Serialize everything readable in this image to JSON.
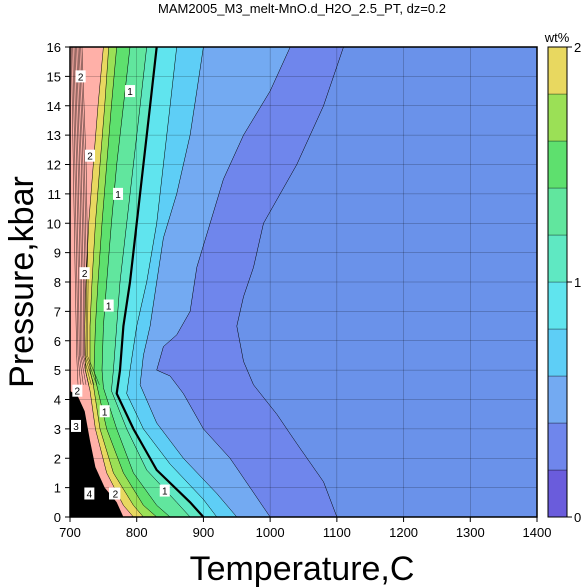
{
  "chart_data": {
    "type": "heatmap",
    "title": "MAM2005_M3_melt-MnO.d_H2O_2.5_PT, dz=0.2",
    "xlabel": "Temperature,C",
    "ylabel": "Pressure,kbar",
    "xlim": [
      700,
      1400
    ],
    "ylim": [
      0,
      16
    ],
    "xticks": [
      700,
      800,
      900,
      1000,
      1100,
      1200,
      1300,
      1400
    ],
    "yticks": [
      0,
      1,
      2,
      3,
      4,
      5,
      6,
      7,
      8,
      9,
      10,
      11,
      12,
      13,
      14,
      15,
      16
    ],
    "grid": true,
    "colorbar": {
      "label": "wt%",
      "range": [
        0,
        2
      ],
      "ticks": [
        0,
        1,
        2
      ],
      "interval": 0.2,
      "colors": [
        "#6a5cdc",
        "#6f86ec",
        "#73aaf2",
        "#5ecef6",
        "#60e4ee",
        "#5fe8c2",
        "#61e69e",
        "#5ee06e",
        "#9be056",
        "#e8d860",
        "#ffb0a8",
        "#f8c2e0",
        "#ffffff"
      ]
    },
    "contour_labels": [
      "2",
      "1",
      "1",
      "2",
      "2",
      "1",
      "2",
      "1",
      "3",
      "4",
      "3",
      "2",
      "1"
    ],
    "bands": [
      {
        "value": 0.3,
        "color": "#6f86ec",
        "boundary": [
          [
            1110,
            16
          ],
          [
            1080,
            14
          ],
          [
            1040,
            12
          ],
          [
            990,
            10
          ],
          [
            975,
            8.5
          ],
          [
            960,
            7.5
          ],
          [
            950,
            6.5
          ],
          [
            960,
            5.3
          ],
          [
            975,
            4.5
          ],
          [
            1010,
            3.5
          ],
          [
            1040,
            2.5
          ],
          [
            1080,
            1.2
          ],
          [
            1100,
            0
          ]
        ]
      },
      {
        "value": 0.5,
        "color": "#73aaf2",
        "boundary": [
          [
            1030,
            16
          ],
          [
            1000,
            14.5
          ],
          [
            960,
            13
          ],
          [
            930,
            11.5
          ],
          [
            910,
            10
          ],
          [
            890,
            8.5
          ],
          [
            880,
            7
          ],
          [
            860,
            6.2
          ],
          [
            840,
            5.8
          ],
          [
            830,
            5
          ],
          [
            850,
            4.8
          ],
          [
            870,
            4.2
          ],
          [
            900,
            3
          ],
          [
            940,
            2
          ],
          [
            970,
            1
          ],
          [
            1000,
            0
          ]
        ]
      },
      {
        "value": 0.7,
        "color": "#5ecef6",
        "boundary": [
          [
            900,
            16
          ],
          [
            890,
            14.5
          ],
          [
            880,
            13
          ],
          [
            860,
            11
          ],
          [
            840,
            9.5
          ],
          [
            830,
            8
          ],
          [
            820,
            6.5
          ],
          [
            810,
            5.5
          ],
          [
            805,
            4.5
          ],
          [
            830,
            3.2
          ],
          [
            870,
            2
          ],
          [
            920,
            0.8
          ],
          [
            950,
            0
          ]
        ]
      },
      {
        "value": 0.9,
        "color": "#60e4ee",
        "boundary": [
          [
            860,
            16
          ],
          [
            850,
            14
          ],
          [
            840,
            12
          ],
          [
            830,
            10
          ],
          [
            815,
            8
          ],
          [
            800,
            6.5
          ],
          [
            790,
            5
          ],
          [
            785,
            4.2
          ],
          [
            810,
            3
          ],
          [
            850,
            1.8
          ],
          [
            900,
            0.6
          ],
          [
            920,
            0
          ]
        ]
      },
      {
        "value": 1.1,
        "color": "#5fe8c2",
        "boundary": [
          [
            830,
            16
          ],
          [
            820,
            14
          ],
          [
            810,
            12
          ],
          [
            800,
            10
          ],
          [
            790,
            8
          ],
          [
            780,
            6.5
          ],
          [
            775,
            5
          ],
          [
            770,
            4.2
          ],
          [
            795,
            3
          ],
          [
            830,
            1.6
          ],
          [
            880,
            0.5
          ],
          [
            900,
            0
          ]
        ]
      },
      {
        "value": 1.3,
        "color": "#61e69e",
        "boundary": [
          [
            815,
            16
          ],
          [
            805,
            14
          ],
          [
            795,
            12
          ],
          [
            785,
            10
          ],
          [
            775,
            8
          ],
          [
            770,
            6.5
          ],
          [
            765,
            5
          ],
          [
            762,
            4.3
          ],
          [
            785,
            3
          ],
          [
            815,
            1.6
          ],
          [
            860,
            0.5
          ],
          [
            880,
            0
          ]
        ]
      },
      {
        "value": 1.5,
        "color": "#5ee06e",
        "boundary": [
          [
            790,
            16
          ],
          [
            780,
            14
          ],
          [
            770,
            12
          ],
          [
            762,
            10
          ],
          [
            755,
            8
          ],
          [
            750,
            6.5
          ],
          [
            748,
            5
          ],
          [
            750,
            4.4
          ],
          [
            770,
            3
          ],
          [
            795,
            1.5
          ],
          [
            830,
            0.4
          ],
          [
            850,
            0
          ]
        ]
      },
      {
        "value": 1.7,
        "color": "#9be056",
        "boundary": [
          [
            770,
            16
          ],
          [
            762,
            14
          ],
          [
            755,
            12
          ],
          [
            748,
            10
          ],
          [
            742,
            8
          ],
          [
            738,
            6.5
          ],
          [
            736,
            5
          ],
          [
            740,
            4.5
          ],
          [
            755,
            3
          ],
          [
            780,
            1.5
          ],
          [
            810,
            0.4
          ],
          [
            830,
            0
          ]
        ]
      },
      {
        "value": 1.9,
        "color": "#e8d860",
        "boundary": [
          [
            758,
            16
          ],
          [
            752,
            14
          ],
          [
            745,
            12
          ],
          [
            738,
            10
          ],
          [
            733,
            8
          ],
          [
            730,
            6.5
          ],
          [
            730,
            5
          ],
          [
            735,
            4.5
          ],
          [
            745,
            3
          ],
          [
            765,
            1.5
          ],
          [
            795,
            0.4
          ],
          [
            810,
            0
          ]
        ]
      },
      {
        "value": 2.1,
        "color": "#ffb0a8",
        "boundary": [
          [
            750,
            16
          ],
          [
            742,
            14
          ],
          [
            735,
            12
          ],
          [
            728,
            10
          ],
          [
            724,
            8
          ],
          [
            722,
            6.5
          ],
          [
            723,
            5
          ],
          [
            730,
            4.3
          ],
          [
            738,
            3
          ],
          [
            755,
            1.5
          ],
          [
            780,
            0.4
          ],
          [
            795,
            0
          ]
        ]
      },
      {
        "value": 2.5,
        "color": "#f8c2e0",
        "boundary": [
          [
            700,
            16
          ],
          [
            700,
            0
          ]
        ]
      }
    ],
    "black_region": [
      [
        700,
        4.3
      ],
      [
        712,
        4.1
      ],
      [
        722,
        3.6
      ],
      [
        730,
        2.6
      ],
      [
        738,
        1.7
      ],
      [
        752,
        1
      ],
      [
        770,
        0.5
      ],
      [
        780,
        0
      ],
      [
        700,
        0
      ]
    ]
  }
}
